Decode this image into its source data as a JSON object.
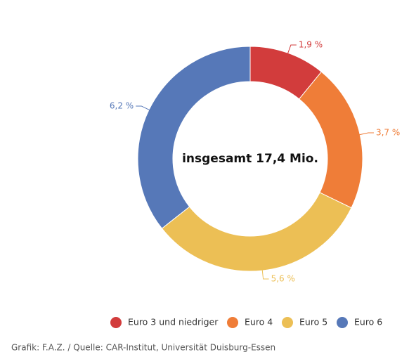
{
  "chart_data": {
    "type": "donut",
    "center_text": "insgesamt 17,4 Mio.",
    "series": [
      {
        "name": "Euro 3 und niedriger",
        "color": "#d23c3c",
        "values": [
          1.9
        ],
        "value_labels": [
          "1,9 %"
        ]
      },
      {
        "name": "Euro 4",
        "color": "#ef7d38",
        "values": [
          3.7
        ],
        "value_labels": [
          "3,7 %"
        ]
      },
      {
        "name": "Euro 5",
        "color": "#ecbf55",
        "values": [
          5.6
        ],
        "value_labels": [
          "5,6 %"
        ]
      },
      {
        "name": "Euro 6",
        "color": "#5678b8",
        "values": [
          6.2
        ],
        "value_labels": [
          "6,2 %"
        ]
      }
    ],
    "legend": "bottom-right",
    "source": "Grafik: F.A.Z. / Quelle: CAR-Institut, Universität Duisburg-Essen"
  }
}
